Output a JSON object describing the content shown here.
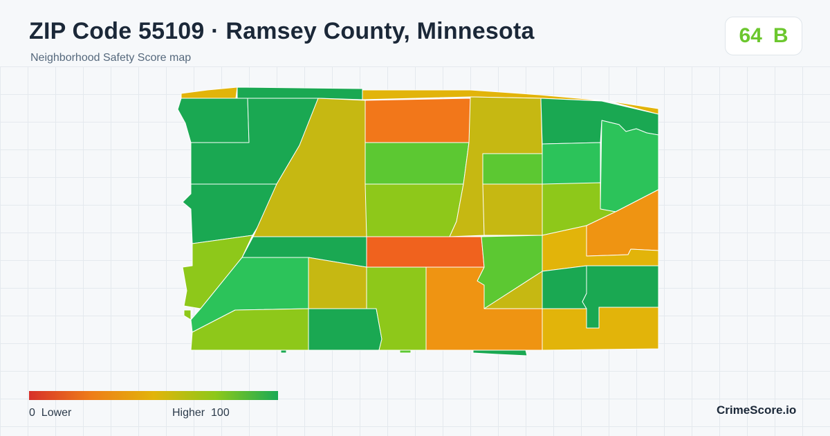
{
  "header": {
    "title": "ZIP Code 55109 · Ramsey County, Minnesota",
    "subtitle": "Neighborhood Safety Score map"
  },
  "score": {
    "value": "64",
    "grade": "B",
    "color": "#6cc72e"
  },
  "legend": {
    "low_label": "0  Lower",
    "high_label": "Higher  100",
    "gradient_colors": [
      "#d7302a",
      "#ee7d19",
      "#e2b40a",
      "#8dc81a",
      "#1aaa55"
    ]
  },
  "brand": "CrimeScore.io",
  "map": {
    "region_colors": {
      "dark_green": "#1aa852",
      "green": "#2cc35a",
      "light_green": "#5cc832",
      "yellow_green": "#8ec81a",
      "olive": "#c6b812",
      "gold": "#e2b40a",
      "orange": "#ef9412",
      "dark_orange": "#f2771a",
      "red_orange": "#f0621e"
    }
  }
}
